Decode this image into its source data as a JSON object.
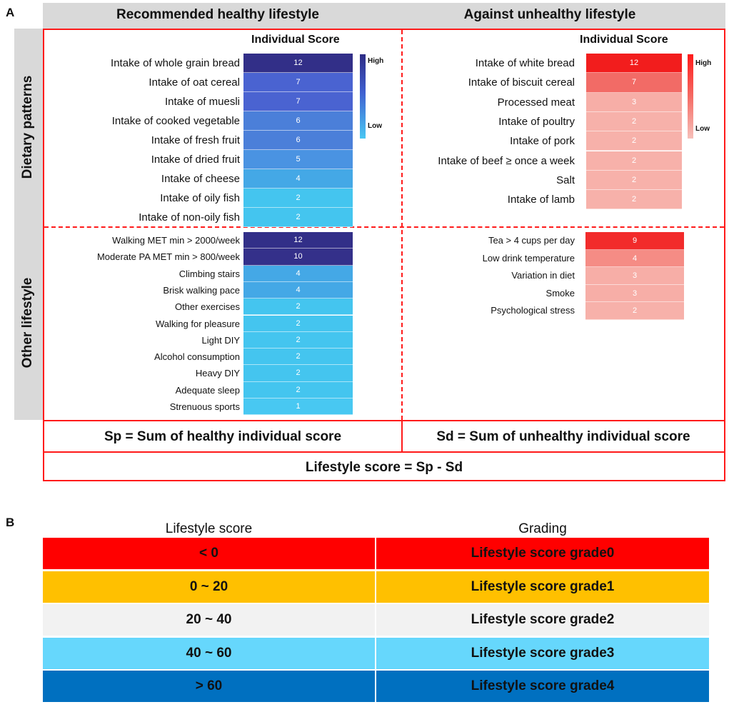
{
  "panel_a_label": "A",
  "panel_b_label": "B",
  "headers": {
    "healthy": "Recommended healthy lifestyle",
    "unhealthy": "Against unhealthy lifestyle"
  },
  "row_labels": {
    "dietary": "Dietary patterns",
    "other": "Other lifestyle"
  },
  "individual_score_title": "Individual Score",
  "legend": {
    "high": "High",
    "low": "Low"
  },
  "colors": {
    "blue_high": "#2e2c85",
    "blue_low": "#49c7f3",
    "red_high": "#ff1a1a",
    "red_low": "#f7b1aa",
    "frame_red": "#ff1a1a",
    "header_gray": "#d9d9d9",
    "grade0": "#ff0000",
    "grade1": "#ffc000",
    "grade2": "#f2f2f2",
    "grade3": "#66d7fc",
    "grade4": "#0070c0"
  },
  "chart_data": [
    {
      "type": "heatmap",
      "title": "Recommended healthy lifestyle - Dietary patterns",
      "colorscale": "blue",
      "categories": [
        "Intake of whole grain bread",
        "Intake of oat cereal",
        "Intake of muesli",
        "Intake of cooked vegetable",
        "Intake of fresh fruit",
        "Intake of dried fruit",
        "Intake of cheese",
        "Intake of oily fish",
        "Intake of non-oily fish"
      ],
      "values": [
        12,
        7,
        7,
        6,
        6,
        5,
        4,
        2,
        2
      ]
    },
    {
      "type": "heatmap",
      "title": "Against unhealthy lifestyle - Dietary patterns",
      "colorscale": "red",
      "categories": [
        "Intake of white bread",
        "Intake of biscuit cereal",
        "Processed meat",
        "Intake of poultry",
        "Intake of pork",
        "Intake of beef ≥ once a week",
        "Salt",
        "Intake of lamb"
      ],
      "values": [
        12,
        7,
        3,
        2,
        2,
        2,
        2,
        2
      ]
    },
    {
      "type": "heatmap",
      "title": "Recommended healthy lifestyle - Other lifestyle",
      "colorscale": "blue",
      "categories": [
        "Walking MET min > 2000/week",
        "Moderate PA MET min > 800/week",
        "Climbing stairs",
        "Brisk walking pace",
        "Other exercises",
        "Walking for pleasure",
        "Light DIY",
        "Alcohol consumption",
        "Heavy DIY",
        "Adequate sleep",
        "Strenuous sports"
      ],
      "values": [
        12,
        10,
        4,
        4,
        2,
        2,
        2,
        2,
        2,
        2,
        1
      ]
    },
    {
      "type": "heatmap",
      "title": "Against unhealthy lifestyle - Other lifestyle",
      "colorscale": "red",
      "categories": [
        "Tea > 4 cups per day",
        "Low drink temperature",
        "Variation in diet",
        "Smoke",
        "Psychological stress"
      ],
      "values": [
        9,
        4,
        3,
        3,
        2
      ]
    }
  ],
  "formulas": {
    "sp": "Sp = Sum of healthy individual score",
    "sd": "Sd = Sum of unhealthy individual score",
    "lifestyle": "Lifestyle score = Sp - Sd"
  },
  "grading": {
    "col1_header": "Lifestyle score",
    "col2_header": "Grading",
    "rows": [
      {
        "range": "< 0",
        "grade": "Lifestyle score grade0"
      },
      {
        "range": "0 ~ 20",
        "grade": "Lifestyle score grade1"
      },
      {
        "range": "20 ~ 40",
        "grade": "Lifestyle score grade2"
      },
      {
        "range": "40 ~ 60",
        "grade": "Lifestyle score grade3"
      },
      {
        "range": "> 60",
        "grade": "Lifestyle score grade4"
      }
    ]
  }
}
